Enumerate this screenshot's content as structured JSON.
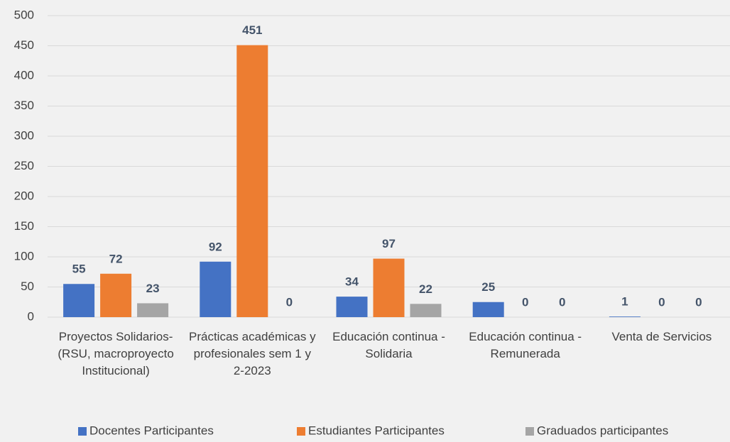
{
  "chart_data": {
    "type": "bar",
    "categories": [
      "Proyectos Solidarios- (RSU, macroproyecto Institucional)",
      "Prácticas académicas y profesionales sem 1 y 2-2023",
      "Educación continua - Solidaria",
      "Educación continua - Remunerada",
      "Venta de Servicios"
    ],
    "series": [
      {
        "name": "Docentes Participantes",
        "color": "#4472c4",
        "values": [
          55,
          92,
          34,
          25,
          1
        ]
      },
      {
        "name": "Estudiantes Participantes",
        "color": "#ed7d31",
        "values": [
          72,
          451,
          97,
          0,
          0
        ]
      },
      {
        "name": "Graduados participantes",
        "color": "#a5a5a5",
        "values": [
          23,
          0,
          22,
          0,
          0
        ]
      }
    ],
    "ylim": [
      0,
      500
    ],
    "yticks": [
      0,
      50,
      100,
      150,
      200,
      250,
      300,
      350,
      400,
      450,
      500
    ],
    "grid": true,
    "legend": "bottom"
  }
}
